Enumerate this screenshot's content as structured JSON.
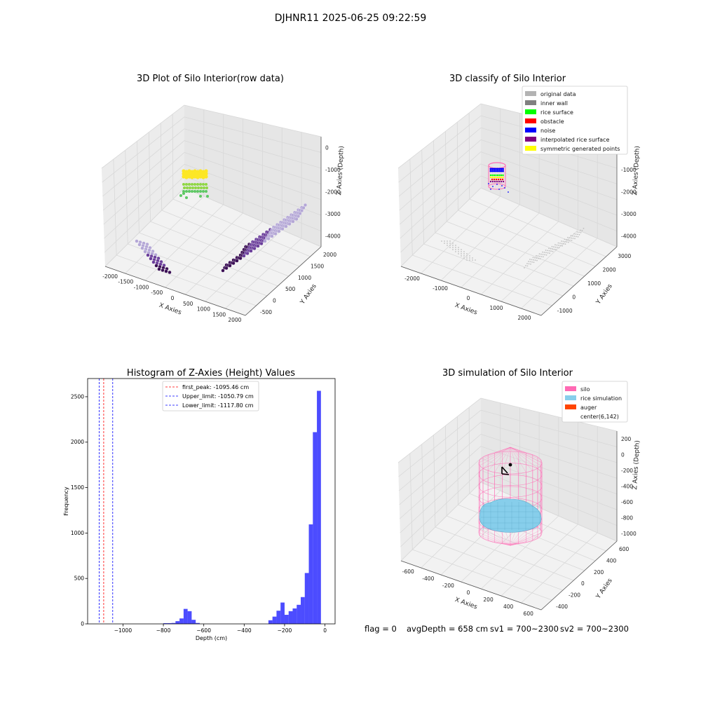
{
  "figure": {
    "suptitle": "DJHNR11 2025-06-25 09:22:59",
    "status_line": {
      "flag": "flag = 0",
      "avg_depth": "avgDepth = 658 cm",
      "sv1": "sv1 = 700~2300",
      "sv2": "sv2 = 700~2300"
    }
  },
  "chart_data": [
    {
      "type": "scatter",
      "title": "3D Plot of Silo Interior(row data)",
      "xlabel": "X Axies",
      "ylabel": "Y Axies",
      "zlabel": "Z Axies (Depth)",
      "x_ticks": [
        "-2000",
        "-1500",
        "-1000",
        "-500",
        "0",
        "500",
        "1000",
        "1500",
        "2000"
      ],
      "y_ticks": [
        "-500",
        "0",
        "500",
        "1000",
        "1500",
        "2000"
      ],
      "z_ticks": [
        "0",
        "-1000",
        "-2000",
        "-3000",
        "-4000"
      ],
      "colors": [
        "#fde725",
        "#8fd744",
        "#5dc863",
        "#b4a7d6",
        "#6a3d9a",
        "#3b0f55"
      ],
      "grid": true
    },
    {
      "type": "scatter",
      "title": "3D classify of Silo Interior",
      "xlabel": "X Axies",
      "ylabel": "Y Axies",
      "zlabel": "Z Axies (Depth)",
      "x_ticks": [
        "-2000",
        "-1000",
        "0",
        "1000",
        "2000"
      ],
      "y_ticks": [
        "-1000",
        "0",
        "1000",
        "2000",
        "3000"
      ],
      "z_ticks": [
        "0",
        "-1000",
        "-2000",
        "-3000",
        "-4000"
      ],
      "legend_position": "top-right",
      "legend": [
        {
          "label": "original data",
          "color": "#b3b3b3"
        },
        {
          "label": "inner wall",
          "color": "#808080"
        },
        {
          "label": "rice surface",
          "color": "#00ff00"
        },
        {
          "label": "obstacle",
          "color": "#ff0000"
        },
        {
          "label": "noise",
          "color": "#0000ff"
        },
        {
          "label": "interpolated rice surface",
          "color": "#800080"
        },
        {
          "label": "symmetric generated points",
          "color": "#ffff00"
        }
      ],
      "grid": true
    },
    {
      "type": "bar",
      "title": "Histogram of Z-Axies (Height) Values",
      "xlabel": "Depth (cm)",
      "ylabel": "Frequency",
      "xlim": [
        -1175,
        50
      ],
      "ylim": [
        0,
        2700
      ],
      "x_ticks": [
        -1000,
        -800,
        -600,
        -400,
        -200,
        0
      ],
      "y_ticks": [
        0,
        500,
        1000,
        1500,
        2000,
        2500
      ],
      "bin_width": 20,
      "bar_color": "#0000ff",
      "bins": [
        [
          -800,
          8
        ],
        [
          -780,
          8
        ],
        [
          -760,
          10
        ],
        [
          -740,
          30
        ],
        [
          -720,
          60
        ],
        [
          -700,
          165
        ],
        [
          -680,
          140
        ],
        [
          -660,
          45
        ],
        [
          -640,
          10
        ],
        [
          -280,
          40
        ],
        [
          -260,
          80
        ],
        [
          -240,
          145
        ],
        [
          -220,
          235
        ],
        [
          -200,
          100
        ],
        [
          -180,
          140
        ],
        [
          -160,
          170
        ],
        [
          -140,
          210
        ],
        [
          -120,
          295
        ],
        [
          -100,
          560
        ],
        [
          -80,
          1095
        ],
        [
          -60,
          2110
        ],
        [
          -40,
          2565
        ]
      ],
      "vlines": [
        {
          "x": -1095.46,
          "color": "#ff0000"
        },
        {
          "x": -1050.79,
          "color": "#0000ff"
        },
        {
          "x": -1117.8,
          "color": "#0000ff"
        }
      ],
      "legend": [
        {
          "label": "first_peak: -1095.46 cm",
          "color": "#ff0000"
        },
        {
          "label": "Upper_limit: -1050.79 cm",
          "color": "#0000ff"
        },
        {
          "label": "Lower_limit: -1117.80 cm",
          "color": "#0000ff"
        }
      ],
      "legend_position": "top-center"
    },
    {
      "type": "scatter",
      "title": "3D simulation of Silo Interior",
      "xlabel": "X Axies",
      "ylabel": "Y Axies",
      "zlabel": "Z Axies (Depth)",
      "x_ticks": [
        "-600",
        "-400",
        "-200",
        "0",
        "200",
        "400",
        "600"
      ],
      "y_ticks": [
        "-400",
        "-200",
        "0",
        "200",
        "400",
        "600"
      ],
      "z_ticks": [
        "200",
        "0",
        "-200",
        "-400",
        "-600",
        "-800",
        "-1000"
      ],
      "legend_position": "top-right",
      "legend": [
        {
          "label": "silo",
          "color": "#ff69b4"
        },
        {
          "label": "rice simulation",
          "color": "#87ceeb"
        },
        {
          "label": "auger",
          "color": "#ff4500"
        },
        {
          "label": "center(6,142)",
          "color": ""
        }
      ],
      "grid": true
    }
  ]
}
